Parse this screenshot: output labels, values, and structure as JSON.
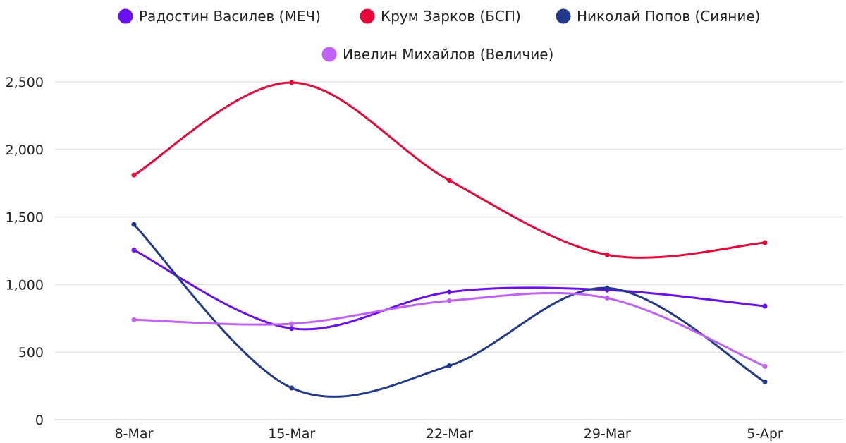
{
  "chart_data": {
    "type": "line",
    "smooth": true,
    "categories": [
      "8-Mar",
      "15-Mar",
      "22-Mar",
      "29-Mar",
      "5-Apr"
    ],
    "ylim": [
      0,
      2500
    ],
    "yticks": [
      0,
      500,
      1000,
      1500,
      2000,
      2500
    ],
    "ytick_labels": [
      "0",
      "500",
      "1,000",
      "1,500",
      "2,000",
      "2,500"
    ],
    "grid": true,
    "legend_position": "top",
    "series": [
      {
        "name": "Радостин Василев (МЕЧ)",
        "color": "#6a0ff0",
        "values": [
          1255,
          675,
          945,
          960,
          840
        ]
      },
      {
        "name": "Крум Зарков (БСП)",
        "color": "#e8073a",
        "values": [
          1810,
          2495,
          1770,
          1220,
          1310
        ]
      },
      {
        "name": "Николай Попов (Сияние)",
        "color": "#233a8a",
        "values": [
          1445,
          235,
          400,
          975,
          280
        ]
      },
      {
        "name": "Ивелин Михайлов (Величие)",
        "color": "#c062f5",
        "values": [
          740,
          710,
          880,
          900,
          395
        ]
      }
    ]
  }
}
